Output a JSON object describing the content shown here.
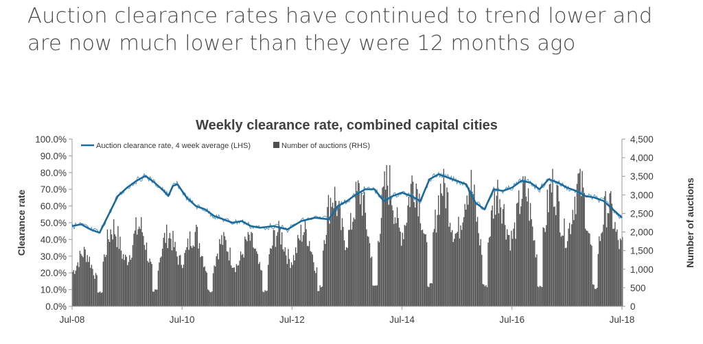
{
  "headline": {
    "line1": "Auction clearance rates have continued to trend lower and",
    "line2": "are now much lower than they were 12 months ago"
  },
  "colors": {
    "line": "#1b6a9c",
    "bars": "#4f4f4f",
    "axis": "#9a9a9a"
  },
  "chart_data": {
    "type": "bar+line",
    "title": "Weekly clearance rate, combined capital cities",
    "ylabel_left": "Clearance rate",
    "ylabel_right": "Number of auctions",
    "left_ticks": [
      "0.0%",
      "10.0%",
      "20.0%",
      "30.0%",
      "40.0%",
      "50.0%",
      "60.0%",
      "70.0%",
      "80.0%",
      "90.0%",
      "100.0%"
    ],
    "right_ticks": [
      "0",
      "500",
      "1,000",
      "1,500",
      "2,000",
      "2,500",
      "3,000",
      "3,500",
      "4,000",
      "4,500"
    ],
    "x_ticks": [
      "Jul-08",
      "Jul-10",
      "Jul-12",
      "Jul-14",
      "Jul-16",
      "Jul-18"
    ],
    "ylim_left": [
      0,
      100
    ],
    "ylim_right": [
      0,
      4500
    ],
    "xlim": [
      "2008-07",
      "2018-07"
    ],
    "legend": {
      "line": "Auction clearance rate, 4 week average (LHS)",
      "bars": "Number of auctions (RHS)",
      "position": "top-left"
    },
    "series_line": {
      "name": "Auction clearance rate, 4 week average (LHS)",
      "axis": "left",
      "points": [
        [
          "2008-07",
          48
        ],
        [
          "2008-09",
          49
        ],
        [
          "2008-11",
          46
        ],
        [
          "2009-01",
          44
        ],
        [
          "2009-03",
          55
        ],
        [
          "2009-05",
          66
        ],
        [
          "2009-07",
          71
        ],
        [
          "2009-09",
          75
        ],
        [
          "2009-11",
          78
        ],
        [
          "2010-01",
          74
        ],
        [
          "2010-03",
          69
        ],
        [
          "2010-04",
          66
        ],
        [
          "2010-05",
          72
        ],
        [
          "2010-06",
          73
        ],
        [
          "2010-08",
          65
        ],
        [
          "2010-10",
          60
        ],
        [
          "2010-12",
          58
        ],
        [
          "2011-02",
          54
        ],
        [
          "2011-04",
          52
        ],
        [
          "2011-06",
          50
        ],
        [
          "2011-08",
          51
        ],
        [
          "2011-10",
          48
        ],
        [
          "2011-12",
          47
        ],
        [
          "2012-03",
          48
        ],
        [
          "2012-06",
          46
        ],
        [
          "2012-09",
          51
        ],
        [
          "2012-12",
          53
        ],
        [
          "2013-03",
          52
        ],
        [
          "2013-05",
          60
        ],
        [
          "2013-07",
          63
        ],
        [
          "2013-09",
          67
        ],
        [
          "2013-11",
          70
        ],
        [
          "2014-01",
          70
        ],
        [
          "2014-03",
          63
        ],
        [
          "2014-05",
          66
        ],
        [
          "2014-07",
          68
        ],
        [
          "2014-09",
          66
        ],
        [
          "2014-11",
          63
        ],
        [
          "2015-01",
          76
        ],
        [
          "2015-03",
          79
        ],
        [
          "2015-05",
          77
        ],
        [
          "2015-07",
          75
        ],
        [
          "2015-09",
          73
        ],
        [
          "2015-11",
          62
        ],
        [
          "2016-01",
          58
        ],
        [
          "2016-03",
          70
        ],
        [
          "2016-05",
          69
        ],
        [
          "2016-07",
          71
        ],
        [
          "2016-09",
          75
        ],
        [
          "2016-11",
          74
        ],
        [
          "2017-01",
          70
        ],
        [
          "2017-03",
          76
        ],
        [
          "2017-05",
          74
        ],
        [
          "2017-07",
          71
        ],
        [
          "2017-09",
          69
        ],
        [
          "2017-11",
          66
        ],
        [
          "2018-01",
          65
        ],
        [
          "2018-03",
          63
        ],
        [
          "2018-05",
          58
        ],
        [
          "2018-07",
          53
        ]
      ]
    },
    "series_bars": {
      "name": "Number of auctions (RHS)",
      "axis": "right",
      "seasonal_bands": [
        {
          "start": "2008-07",
          "end": "2008-12",
          "min": 800,
          "max": 1600
        },
        {
          "start": "2009-01",
          "end": "2009-12",
          "min": 700,
          "max": 2400
        },
        {
          "start": "2010-01",
          "end": "2010-12",
          "min": 900,
          "max": 2200
        },
        {
          "start": "2011-01",
          "end": "2011-12",
          "min": 800,
          "max": 2000
        },
        {
          "start": "2012-01",
          "end": "2012-12",
          "min": 800,
          "max": 2300
        },
        {
          "start": "2013-01",
          "end": "2013-12",
          "min": 1000,
          "max": 3400
        },
        {
          "start": "2014-01",
          "end": "2014-12",
          "min": 1000,
          "max": 3800
        },
        {
          "start": "2015-01",
          "end": "2015-12",
          "min": 1100,
          "max": 3700
        },
        {
          "start": "2016-01",
          "end": "2016-12",
          "min": 1000,
          "max": 3500
        },
        {
          "start": "2017-01",
          "end": "2017-12",
          "min": 1000,
          "max": 3700
        },
        {
          "start": "2018-01",
          "end": "2018-07",
          "min": 900,
          "max": 3100
        }
      ]
    }
  }
}
